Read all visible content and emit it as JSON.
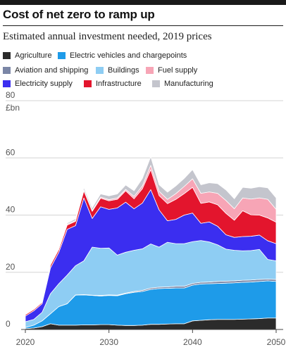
{
  "header": {
    "title": "Cost of net zero to ramp up",
    "subtitle": "Estimated annual investment needed, 2019 prices"
  },
  "chart_data": {
    "type": "area",
    "stacked": true,
    "title": "Cost of net zero to ramp up",
    "subtitle": "Estimated annual investment needed, 2019 prices",
    "ylabel": "£bn",
    "xlabel": "",
    "ylim": [
      0,
      80
    ],
    "yticks": [
      0,
      20,
      40,
      60,
      80
    ],
    "xticks": [
      2020,
      2030,
      2040,
      2050
    ],
    "grid": true,
    "legend_position": "top",
    "x": [
      2020,
      2021,
      2022,
      2023,
      2024,
      2025,
      2026,
      2027,
      2028,
      2029,
      2030,
      2031,
      2032,
      2033,
      2034,
      2035,
      2036,
      2037,
      2038,
      2039,
      2040,
      2041,
      2042,
      2043,
      2044,
      2045,
      2046,
      2047,
      2048,
      2049,
      2050
    ],
    "series": [
      {
        "name": "Agriculture",
        "color": "#2b2b2b",
        "values": [
          0.3,
          0.5,
          1.0,
          2.0,
          1.5,
          1.5,
          1.5,
          1.6,
          1.6,
          1.7,
          1.7,
          1.5,
          1.4,
          1.4,
          1.5,
          1.8,
          1.8,
          1.9,
          2.0,
          2.0,
          3.0,
          3.2,
          3.4,
          3.5,
          3.5,
          3.5,
          3.6,
          3.7,
          3.8,
          4.0,
          4.0
        ]
      },
      {
        "name": "Electric vehicles and chargepoints",
        "color": "#1e9be9",
        "values": [
          0.4,
          1.0,
          2.0,
          3.5,
          6.5,
          7.5,
          10.5,
          10.5,
          10.3,
          10.0,
          10.2,
          10.3,
          11.1,
          11.6,
          11.8,
          12.2,
          12.5,
          12.5,
          12.5,
          12.5,
          12.5,
          12.7,
          12.6,
          12.6,
          12.7,
          12.8,
          12.9,
          12.9,
          13.0,
          13.0,
          12.8
        ]
      },
      {
        "name": "Aviation and shipping",
        "color": "#7b86a6",
        "values": [
          0.0,
          0.0,
          0.0,
          0.0,
          0.0,
          0.0,
          0.1,
          0.1,
          0.1,
          0.2,
          0.2,
          0.2,
          0.2,
          0.3,
          0.4,
          0.5,
          0.5,
          0.5,
          0.6,
          0.6,
          0.6,
          0.6,
          0.6,
          0.7,
          0.7,
          0.7,
          0.7,
          0.7,
          0.7,
          0.6,
          0.7
        ]
      },
      {
        "name": "Buildings",
        "color": "#8ecdf3",
        "values": [
          2.0,
          2.0,
          3.0,
          7.0,
          8.0,
          10.0,
          10.2,
          11.8,
          16.8,
          16.5,
          16.4,
          14.0,
          14.3,
          14.4,
          14.5,
          15.4,
          14.0,
          15.6,
          14.9,
          14.9,
          14.6,
          14.6,
          14.0,
          12.8,
          11.2,
          10.7,
          10.3,
          10.3,
          10.5,
          6.9,
          6.5
        ]
      },
      {
        "name": "Electricity supply",
        "color": "#3b2ef0",
        "values": [
          2.0,
          3.0,
          3.0,
          9.0,
          11.0,
          16.0,
          14.0,
          22.0,
          10.0,
          14.5,
          13.5,
          16.5,
          17.5,
          14.5,
          16.0,
          19.0,
          13.0,
          7.5,
          8.5,
          10.0,
          10.0,
          6.0,
          7.0,
          6.5,
          5.0,
          4.5,
          5.0,
          5.0,
          5.0,
          6.5,
          6.0
        ]
      },
      {
        "name": "Infrastructure",
        "color": "#e3152d",
        "values": [
          0.5,
          0.5,
          0.5,
          1.0,
          1.0,
          1.5,
          1.5,
          2.5,
          2.5,
          3.0,
          3.0,
          3.0,
          4.0,
          3.5,
          5.0,
          7.0,
          5.0,
          6.0,
          7.0,
          7.5,
          9.0,
          7.0,
          7.0,
          7.5,
          7.5,
          6.0,
          9.0,
          7.5,
          7.0,
          8.0,
          7.5
        ]
      },
      {
        "name": "Fuel supply",
        "color": "#f7a5b6",
        "values": [
          0.0,
          0.0,
          0.0,
          0.0,
          0.2,
          0.3,
          0.3,
          0.3,
          0.3,
          0.4,
          0.4,
          0.5,
          0.5,
          0.8,
          1.0,
          1.5,
          1.5,
          1.5,
          2.0,
          2.5,
          3.0,
          3.5,
          3.5,
          4.0,
          4.5,
          4.0,
          4.5,
          5.5,
          6.0,
          6.5,
          4.5
        ]
      },
      {
        "name": "Manufacturing",
        "color": "#c4c5cd",
        "values": [
          0.0,
          0.0,
          0.0,
          0.0,
          0.3,
          0.4,
          0.6,
          0.8,
          0.9,
          1.1,
          1.3,
          1.4,
          1.5,
          2.0,
          2.6,
          3.0,
          2.3,
          2.5,
          2.7,
          2.8,
          3.2,
          3.0,
          3.2,
          3.4,
          3.7,
          3.5,
          3.7,
          3.8,
          3.9,
          4.0,
          4.0
        ]
      }
    ]
  }
}
